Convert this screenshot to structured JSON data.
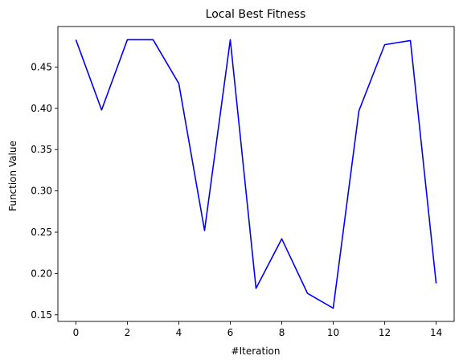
{
  "chart_data": {
    "type": "line",
    "title": "Local Best Fitness",
    "xlabel": "#Iteration",
    "ylabel": "Function Value",
    "x": [
      0,
      1,
      2,
      3,
      4,
      5,
      6,
      7,
      8,
      9,
      10,
      11,
      12,
      13,
      14
    ],
    "series": [
      {
        "values": [
          0.483,
          0.398,
          0.483,
          0.483,
          0.43,
          0.252,
          0.483,
          0.182,
          0.242,
          0.176,
          0.158,
          0.397,
          0.477,
          0.482,
          0.188
        ],
        "color": "#0000ff"
      }
    ],
    "xlim": [
      -0.7,
      14.7
    ],
    "ylim": [
      0.142,
      0.499
    ],
    "xticks": [
      0,
      2,
      4,
      6,
      8,
      10,
      12,
      14
    ],
    "xtick_labels": [
      "0",
      "2",
      "4",
      "6",
      "8",
      "10",
      "12",
      "14"
    ],
    "yticks": [
      0.15,
      0.2,
      0.25,
      0.3,
      0.35,
      0.4,
      0.45
    ],
    "ytick_labels": [
      "0.15",
      "0.20",
      "0.25",
      "0.30",
      "0.35",
      "0.40",
      "0.45"
    ],
    "grid": false
  }
}
